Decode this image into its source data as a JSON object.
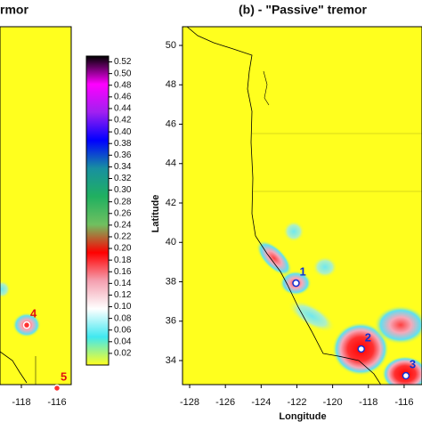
{
  "left_panel": {
    "title": "rmor",
    "xlim": [
      -119.2,
      -115.2
    ],
    "ylim": [
      32.78,
      50.95
    ],
    "xticks": [
      -118,
      -116
    ],
    "markers": [
      {
        "label": "4",
        "lon": -117.7,
        "lat": 35.8
      },
      {
        "label": "5",
        "lon": -116,
        "lat": 32.6
      }
    ]
  },
  "colorbar": {
    "clim": [
      0,
      0.53
    ],
    "colors": [
      "#ffff1e",
      "#40e8f0",
      "#ffffff",
      "#f4a0b0",
      "#ff0000",
      "#70c060",
      "#20b060",
      "#1890a0",
      "#0000ff",
      "#a020f0",
      "#ff00ff",
      "#000000"
    ],
    "ticks": [
      0.02,
      0.04,
      0.06,
      0.08,
      {
        "value": 0.1,
        "label": "0.10"
      },
      0.12,
      0.14,
      0.16,
      0.18,
      {
        "value": 0.2,
        "label": "0.20"
      },
      0.22,
      0.24,
      0.26,
      0.28,
      {
        "value": 0.3,
        "label": "0.30"
      },
      0.32,
      0.34,
      0.36,
      0.38,
      {
        "value": 0.4,
        "label": "0.40"
      },
      0.42,
      0.44,
      0.46,
      0.48,
      {
        "value": 0.5,
        "label": "0.50"
      },
      0.52
    ]
  },
  "right_panel": {
    "title": "(b) - \"Passive\" tremor",
    "xlabel": "Longitude",
    "ylabel": "Latitude",
    "xlim": [
      -128.4,
      -115
    ],
    "ylim": [
      32.78,
      50.95
    ],
    "xticks": [
      -128,
      -126,
      -124,
      -122,
      -120,
      -118,
      -116
    ],
    "yticks": [
      34,
      36,
      38,
      40,
      42,
      44,
      46,
      48,
      50
    ],
    "markers": [
      {
        "label": "1",
        "lon": -122.05,
        "lat": 37.93
      },
      {
        "label": "2",
        "lon": -118.4,
        "lat": 34.59
      },
      {
        "label": "3",
        "lon": -115.9,
        "lat": 33.23
      }
    ]
  }
}
